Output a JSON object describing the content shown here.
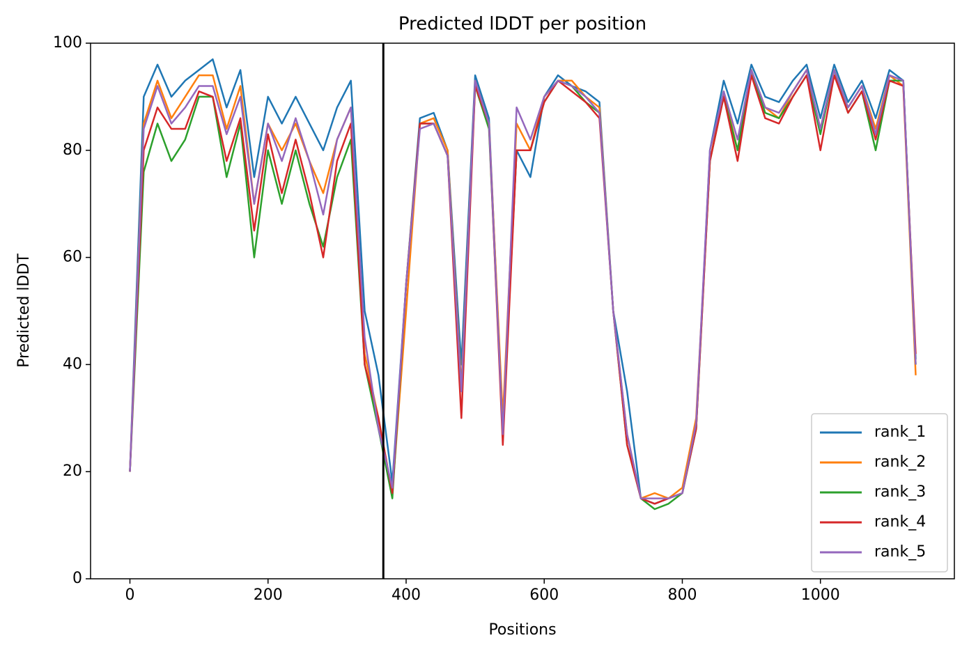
{
  "chart_data": {
    "type": "line",
    "title": "Predicted lDDT per position",
    "xlabel": "Positions",
    "ylabel": "Predicted lDDT",
    "x": [
      0,
      20,
      40,
      60,
      80,
      100,
      120,
      140,
      160,
      180,
      200,
      220,
      240,
      260,
      280,
      300,
      320,
      340,
      360,
      380,
      400,
      420,
      440,
      460,
      480,
      500,
      520,
      540,
      560,
      580,
      600,
      620,
      640,
      660,
      680,
      700,
      720,
      740,
      760,
      780,
      800,
      820,
      840,
      860,
      880,
      900,
      920,
      940,
      960,
      980,
      1000,
      1020,
      1040,
      1060,
      1080,
      1100,
      1120,
      1138
    ],
    "series": [
      {
        "name": "rank_1",
        "color": "#1f77b4",
        "values": [
          20,
          90,
          96,
          90,
          93,
          95,
          97,
          88,
          95,
          75,
          90,
          85,
          90,
          85,
          80,
          88,
          93,
          50,
          38,
          18,
          55,
          86,
          87,
          80,
          40,
          94,
          86,
          28,
          80,
          75,
          90,
          94,
          92,
          91,
          89,
          50,
          35,
          15,
          14,
          15,
          16,
          28,
          80,
          93,
          85,
          96,
          90,
          89,
          93,
          96,
          86,
          96,
          89,
          93,
          86,
          95,
          93,
          41
        ]
      },
      {
        "name": "rank_2",
        "color": "#ff7f0e",
        "values": [
          20,
          85,
          93,
          86,
          90,
          94,
          94,
          84,
          92,
          70,
          85,
          80,
          85,
          78,
          72,
          82,
          88,
          42,
          30,
          16,
          50,
          85,
          86,
          80,
          36,
          93,
          85,
          30,
          85,
          80,
          90,
          93,
          93,
          90,
          88,
          50,
          27,
          15,
          16,
          15,
          17,
          30,
          78,
          91,
          80,
          95,
          88,
          86,
          91,
          95,
          84,
          95,
          88,
          92,
          84,
          94,
          92,
          38
        ]
      },
      {
        "name": "rank_3",
        "color": "#2ca02c",
        "values": [
          20,
          76,
          85,
          78,
          82,
          90,
          90,
          75,
          85,
          60,
          80,
          70,
          80,
          70,
          62,
          75,
          82,
          40,
          28,
          15,
          55,
          85,
          85,
          79,
          35,
          92,
          84,
          27,
          80,
          80,
          89,
          93,
          92,
          89,
          87,
          50,
          25,
          15,
          13,
          14,
          16,
          28,
          78,
          90,
          80,
          95,
          87,
          86,
          90,
          94,
          83,
          95,
          87,
          91,
          80,
          93,
          93,
          40
        ]
      },
      {
        "name": "rank_4",
        "color": "#d62728",
        "values": [
          20,
          80,
          88,
          84,
          84,
          91,
          90,
          78,
          86,
          65,
          83,
          72,
          82,
          72,
          60,
          78,
          85,
          40,
          30,
          16,
          55,
          85,
          85,
          79,
          30,
          92,
          85,
          25,
          80,
          80,
          89,
          93,
          91,
          89,
          86,
          50,
          25,
          15,
          14,
          15,
          16,
          28,
          78,
          90,
          78,
          94,
          86,
          85,
          90,
          94,
          80,
          94,
          87,
          91,
          82,
          93,
          92,
          42
        ]
      },
      {
        "name": "rank_5",
        "color": "#9467bd",
        "values": [
          20,
          84,
          92,
          85,
          88,
          92,
          92,
          83,
          90,
          70,
          85,
          78,
          86,
          78,
          68,
          82,
          88,
          45,
          28,
          17,
          55,
          84,
          85,
          79,
          35,
          93,
          85,
          27,
          88,
          82,
          90,
          93,
          92,
          90,
          87,
          50,
          27,
          15,
          15,
          15,
          16,
          29,
          80,
          91,
          82,
          95,
          88,
          87,
          91,
          95,
          84,
          95,
          88,
          92,
          83,
          94,
          93,
          40
        ]
      }
    ],
    "vertical_line": 367,
    "xlim": [
      -57,
      1194
    ],
    "xticks": [
      0,
      200,
      400,
      600,
      800,
      1000
    ],
    "ylim": [
      0,
      100
    ],
    "yticks": [
      0,
      20,
      40,
      60,
      80,
      100
    ],
    "legend": "lower right"
  }
}
